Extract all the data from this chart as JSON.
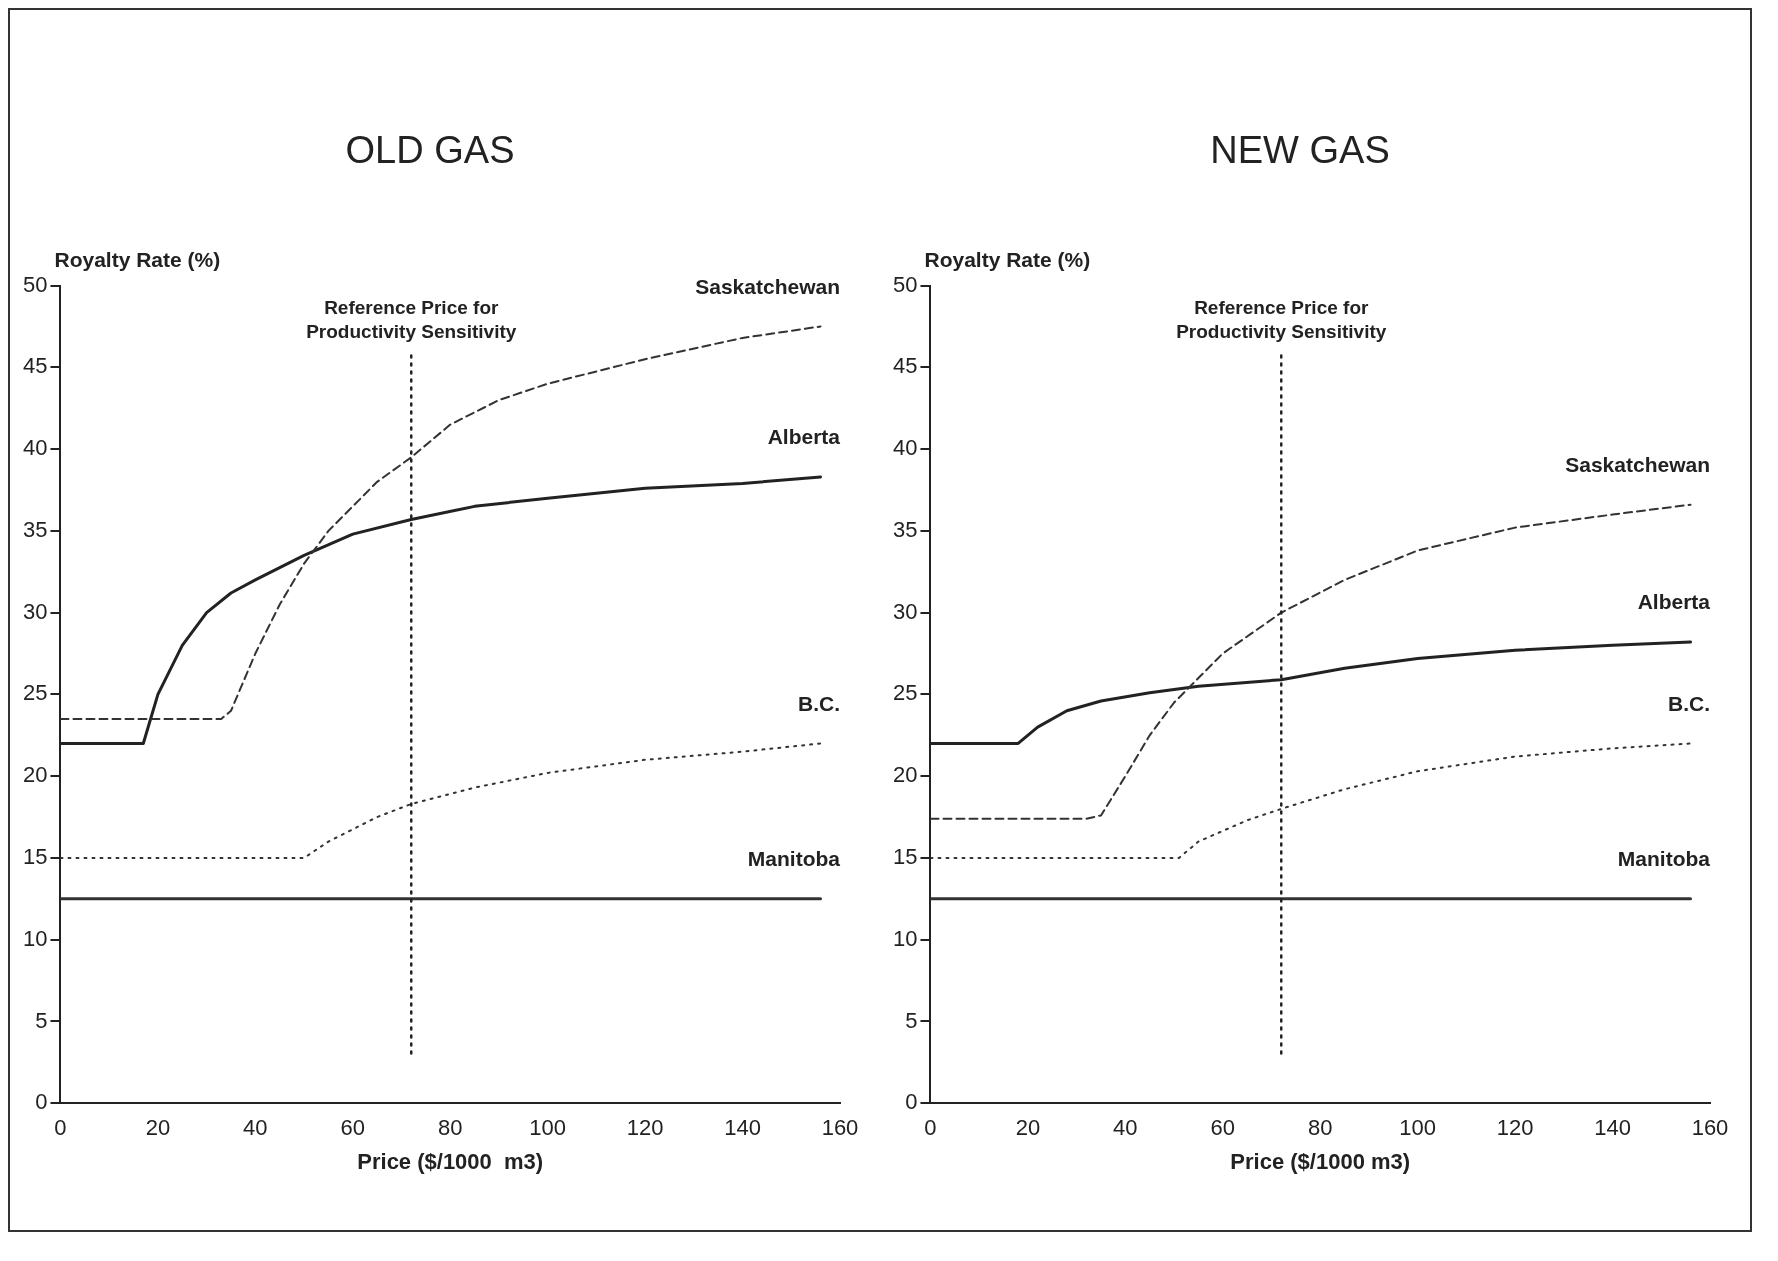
{
  "chart_data": [
    {
      "type": "line",
      "title": "OLD GAS",
      "xlabel": "Price ($/1000  m3)",
      "ylabel": "Royalty Rate (%)",
      "xlim": [
        0,
        160
      ],
      "xticks": [
        0,
        20,
        40,
        60,
        80,
        100,
        120,
        140,
        160
      ],
      "ylim": [
        0,
        50
      ],
      "yticks": [
        0,
        5,
        10,
        15,
        20,
        25,
        30,
        35,
        40,
        45,
        50
      ],
      "grid": false,
      "legend": false,
      "ref_lines": [
        {
          "axis": "x",
          "value": 72,
          "label": "Reference Price for Productivity Sensitivity",
          "line_style": "dotted"
        }
      ],
      "series": [
        {
          "name": "Saskatchewan",
          "color": "#333333",
          "line_style": "dashed",
          "x": [
            0,
            33,
            35,
            40,
            45,
            50,
            55,
            60,
            65,
            72,
            80,
            90,
            100,
            120,
            140,
            156
          ],
          "values": [
            23.5,
            23.5,
            24,
            27.5,
            30.5,
            33,
            35,
            36.5,
            38,
            39.5,
            41.5,
            43,
            44,
            45.5,
            46.8,
            47.5
          ]
        },
        {
          "name": "Alberta",
          "color": "#222222",
          "line_style": "solid",
          "x": [
            0,
            17,
            20,
            25,
            30,
            35,
            40,
            50,
            60,
            72,
            85,
            100,
            120,
            140,
            156
          ],
          "values": [
            22,
            22,
            25,
            28,
            30,
            31.2,
            32,
            33.5,
            34.8,
            35.7,
            36.5,
            37,
            37.6,
            37.9,
            38.3
          ]
        },
        {
          "name": "B.C.",
          "color": "#333333",
          "line_style": "dotted",
          "x": [
            0,
            50,
            55,
            65,
            72,
            85,
            100,
            120,
            140,
            156
          ],
          "values": [
            15,
            15,
            16,
            17.5,
            18.3,
            19.3,
            20.2,
            21,
            21.5,
            22
          ]
        },
        {
          "name": "Manitoba",
          "color": "#333333",
          "line_style": "solid",
          "x": [
            0,
            156
          ],
          "values": [
            12.5,
            12.5
          ]
        }
      ]
    },
    {
      "type": "line",
      "title": "NEW GAS",
      "xlabel": "Price ($/1000 m3)",
      "ylabel": "Royalty Rate (%)",
      "xlim": [
        0,
        160
      ],
      "xticks": [
        0,
        20,
        40,
        60,
        80,
        100,
        120,
        140,
        160
      ],
      "ylim": [
        0,
        50
      ],
      "yticks": [
        0,
        5,
        10,
        15,
        20,
        25,
        30,
        35,
        40,
        45,
        50
      ],
      "grid": false,
      "legend": false,
      "ref_lines": [
        {
          "axis": "x",
          "value": 72,
          "label": "Reference Price for Productivity Sensitivity",
          "line_style": "dotted"
        }
      ],
      "series": [
        {
          "name": "Saskatchewan",
          "color": "#333333",
          "line_style": "dashed",
          "x": [
            0,
            32,
            35,
            40,
            45,
            50,
            55,
            60,
            72,
            85,
            100,
            120,
            140,
            156
          ],
          "values": [
            17.4,
            17.4,
            17.6,
            20,
            22.5,
            24.5,
            26,
            27.5,
            30,
            32,
            33.8,
            35.2,
            36,
            36.6
          ]
        },
        {
          "name": "Alberta",
          "color": "#222222",
          "line_style": "solid",
          "x": [
            0,
            18,
            22,
            28,
            35,
            45,
            55,
            72,
            85,
            100,
            120,
            140,
            156
          ],
          "values": [
            22,
            22,
            23,
            24,
            24.6,
            25.1,
            25.5,
            25.9,
            26.6,
            27.2,
            27.7,
            28,
            28.2
          ]
        },
        {
          "name": "B.C.",
          "color": "#333333",
          "line_style": "dotted",
          "x": [
            0,
            51,
            55,
            65,
            72,
            85,
            100,
            120,
            140,
            156
          ],
          "values": [
            15,
            15,
            16,
            17.3,
            18,
            19.2,
            20.3,
            21.2,
            21.7,
            22
          ]
        },
        {
          "name": "Manitoba",
          "color": "#333333",
          "line_style": "solid",
          "x": [
            0,
            156
          ],
          "values": [
            12.5,
            12.5
          ]
        }
      ]
    }
  ]
}
